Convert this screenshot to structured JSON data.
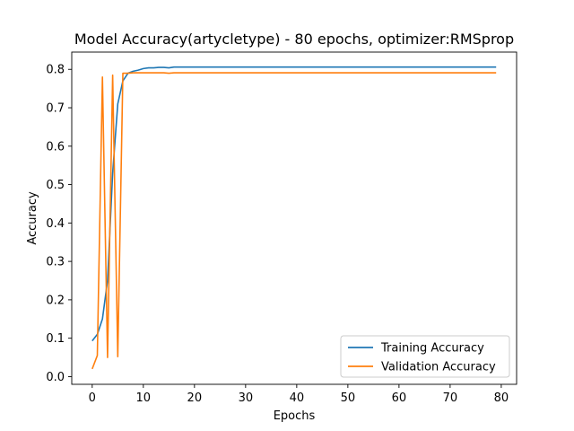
{
  "chart_data": {
    "type": "line",
    "title": "Model Accuracy(artycletype) - 80 epochs, optimizer:RMSprop",
    "xlabel": "Epochs",
    "ylabel": "Accuracy",
    "xlim": [
      -4,
      83
    ],
    "ylim": [
      -0.02,
      0.845
    ],
    "xticks": [
      0,
      10,
      20,
      30,
      40,
      50,
      60,
      70,
      80
    ],
    "yticks": [
      0.0,
      0.1,
      0.2,
      0.3,
      0.4,
      0.5,
      0.6,
      0.7,
      0.8
    ],
    "grid": false,
    "legend_position": "lower-right",
    "x": [
      0,
      1,
      2,
      3,
      4,
      5,
      6,
      7,
      8,
      9,
      10,
      11,
      12,
      13,
      14,
      15,
      16,
      17,
      18,
      19,
      20,
      21,
      22,
      23,
      24,
      25,
      26,
      27,
      28,
      29,
      30,
      31,
      32,
      33,
      34,
      35,
      36,
      37,
      38,
      39,
      40,
      41,
      42,
      43,
      44,
      45,
      46,
      47,
      48,
      49,
      50,
      51,
      52,
      53,
      54,
      55,
      56,
      57,
      58,
      59,
      60,
      61,
      62,
      63,
      64,
      65,
      66,
      67,
      68,
      69,
      70,
      71,
      72,
      73,
      74,
      75,
      76,
      77,
      78,
      79
    ],
    "series": [
      {
        "name": "Training Accuracy",
        "color": "#1f77b4",
        "values": [
          0.093,
          0.11,
          0.15,
          0.25,
          0.53,
          0.71,
          0.77,
          0.79,
          0.795,
          0.798,
          0.802,
          0.804,
          0.804,
          0.805,
          0.805,
          0.804,
          0.806,
          0.806,
          0.806,
          0.806,
          0.806,
          0.806,
          0.806,
          0.806,
          0.806,
          0.806,
          0.806,
          0.806,
          0.806,
          0.806,
          0.806,
          0.806,
          0.806,
          0.806,
          0.806,
          0.806,
          0.806,
          0.806,
          0.806,
          0.806,
          0.806,
          0.806,
          0.806,
          0.806,
          0.806,
          0.806,
          0.806,
          0.806,
          0.806,
          0.806,
          0.806,
          0.806,
          0.806,
          0.806,
          0.806,
          0.806,
          0.806,
          0.806,
          0.806,
          0.806,
          0.806,
          0.806,
          0.806,
          0.806,
          0.806,
          0.806,
          0.806,
          0.806,
          0.806,
          0.806,
          0.806,
          0.806,
          0.806,
          0.806,
          0.806,
          0.806,
          0.806,
          0.806,
          0.806,
          0.806
        ]
      },
      {
        "name": "Validation Accuracy",
        "color": "#ff7f0e",
        "values": [
          0.02,
          0.055,
          0.78,
          0.05,
          0.785,
          0.052,
          0.79,
          0.79,
          0.791,
          0.791,
          0.791,
          0.791,
          0.791,
          0.791,
          0.791,
          0.79,
          0.791,
          0.791,
          0.791,
          0.791,
          0.791,
          0.791,
          0.791,
          0.791,
          0.791,
          0.791,
          0.791,
          0.791,
          0.791,
          0.791,
          0.791,
          0.791,
          0.791,
          0.791,
          0.791,
          0.791,
          0.791,
          0.791,
          0.791,
          0.791,
          0.791,
          0.791,
          0.791,
          0.791,
          0.791,
          0.791,
          0.791,
          0.791,
          0.791,
          0.791,
          0.791,
          0.791,
          0.791,
          0.791,
          0.791,
          0.791,
          0.791,
          0.791,
          0.791,
          0.791,
          0.791,
          0.791,
          0.791,
          0.791,
          0.791,
          0.791,
          0.791,
          0.791,
          0.791,
          0.791,
          0.791,
          0.791,
          0.791,
          0.791,
          0.791,
          0.791,
          0.791,
          0.791,
          0.791,
          0.791
        ]
      }
    ]
  }
}
